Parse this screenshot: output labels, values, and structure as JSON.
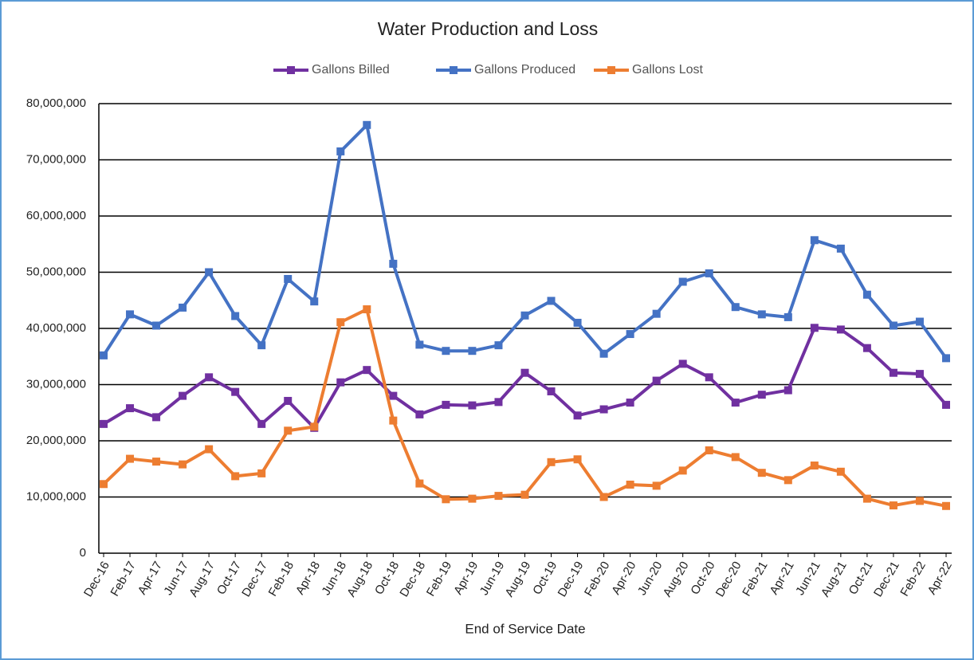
{
  "chart_data": {
    "type": "line",
    "title": "Water Production and Loss",
    "x_label": "End of Service Date",
    "legend": "top",
    "grid": true,
    "categories": [
      "Dec-16",
      "Feb-17",
      "Apr-17",
      "Jun-17",
      "Aug-17",
      "Oct-17",
      "Dec-17",
      "Feb-18",
      "Apr-18",
      "Jun-18",
      "Aug-18",
      "Oct-18",
      "Dec-18",
      "Feb-19",
      "Apr-19",
      "Jun-19",
      "Aug-19",
      "Oct-19",
      "Dec-19",
      "Feb-20",
      "Apr-20",
      "Jun-20",
      "Aug-20",
      "Oct-20",
      "Dec-20",
      "Feb-21",
      "Apr-21",
      "Jun-21",
      "Aug-21",
      "Oct-21",
      "Dec-21",
      "Feb-22",
      "Apr-22"
    ],
    "series": [
      {
        "name": "Gallons Billed",
        "color": "#7030a0",
        "values": [
          23000000,
          25800000,
          24200000,
          28000000,
          31300000,
          28700000,
          23000000,
          27100000,
          22300000,
          30400000,
          32600000,
          28000000,
          24700000,
          26400000,
          26300000,
          26900000,
          32100000,
          28800000,
          24500000,
          25600000,
          26800000,
          30700000,
          33700000,
          31300000,
          26800000,
          28200000,
          29000000,
          40100000,
          39800000,
          36500000,
          32100000,
          31900000,
          26400000
        ]
      },
      {
        "name": "Gallons Produced",
        "color": "#4472c4",
        "values": [
          35200000,
          42500000,
          40500000,
          43700000,
          50000000,
          42200000,
          37000000,
          48800000,
          44800000,
          71500000,
          76200000,
          51500000,
          37100000,
          36000000,
          36000000,
          37000000,
          42300000,
          44900000,
          41000000,
          35500000,
          39000000,
          42600000,
          48300000,
          49800000,
          43800000,
          42500000,
          42000000,
          55700000,
          54200000,
          46000000,
          40500000,
          41200000,
          34700000
        ]
      },
      {
        "name": "Gallons Lost",
        "color": "#ed7d31",
        "values": [
          12300000,
          16800000,
          16300000,
          15800000,
          18500000,
          13700000,
          14200000,
          21800000,
          22500000,
          41100000,
          43400000,
          23600000,
          12400000,
          9600000,
          9700000,
          10200000,
          10400000,
          16200000,
          16700000,
          10000000,
          12200000,
          12000000,
          14700000,
          18300000,
          17100000,
          14300000,
          13000000,
          15600000,
          14500000,
          9700000,
          8500000,
          9300000,
          8400000
        ]
      }
    ],
    "ylim": [
      0,
      80000000
    ],
    "yticks": [
      0,
      {
        "value": 10000000,
        "label": "10,000,000"
      },
      {
        "value": 20000000,
        "label": "20,000,000"
      },
      {
        "value": 30000000,
        "label": "30,000,000"
      },
      {
        "value": 40000000,
        "label": "40,000,000"
      },
      {
        "value": 50000000,
        "label": "50,000,000"
      },
      {
        "value": 60000000,
        "label": "60,000,000"
      },
      {
        "value": 70000000,
        "label": "70,000,000"
      },
      {
        "value": 80000000,
        "label": "80,000,000"
      }
    ]
  }
}
